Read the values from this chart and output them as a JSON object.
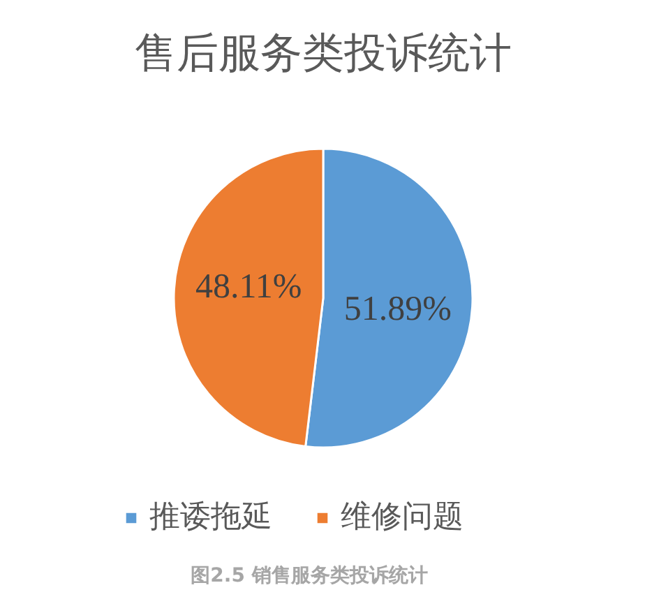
{
  "chart_data": {
    "type": "pie",
    "title": "售后服务类投诉统计",
    "categories": [
      "推诿拖延",
      "维修问题"
    ],
    "values": [
      51.89,
      48.11
    ],
    "colors": [
      "#5b9bd5",
      "#ed7d31"
    ],
    "value_labels": [
      "51.89%",
      "48.11%"
    ],
    "legend": "bottom",
    "annotations": [
      "图2.5 销售服务类投诉统计"
    ]
  }
}
